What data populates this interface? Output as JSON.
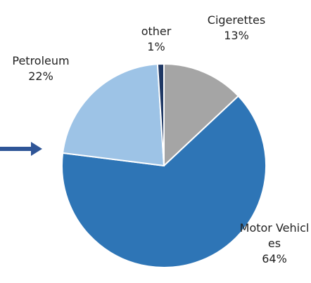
{
  "chart_data": {
    "type": "pie",
    "categories": [
      "Cigerettes",
      "Motor Vehicles",
      "Petroleum",
      "other"
    ],
    "values": [
      13,
      64,
      22,
      1
    ],
    "value_labels": [
      "13%",
      "64%",
      "22%",
      "1%"
    ],
    "colors": [
      "#a5a5a5",
      "#2e75b6",
      "#9dc3e6",
      "#1f3864"
    ]
  }
}
